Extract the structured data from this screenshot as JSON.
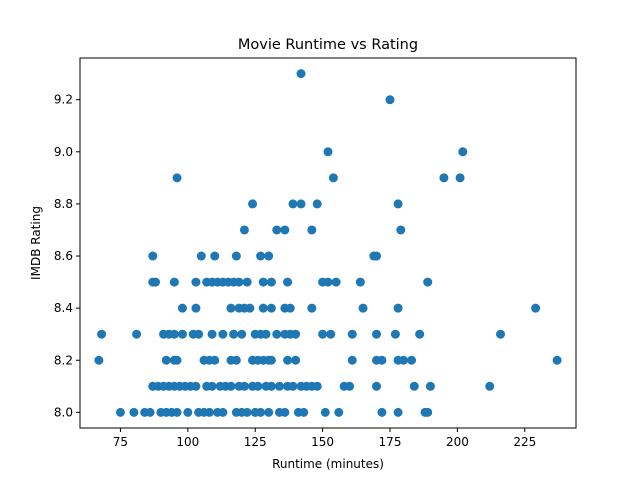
{
  "chart_data": {
    "type": "scatter",
    "title": "Movie Runtime vs Rating",
    "xlabel": "Runtime (minutes)",
    "ylabel": "IMDB Rating",
    "xlim": [
      60,
      244
    ],
    "ylim": [
      7.94,
      9.36
    ],
    "xticks": [
      75,
      100,
      125,
      150,
      175,
      200,
      225
    ],
    "yticks": [
      8.0,
      8.2,
      8.4,
      8.6,
      8.8,
      9.0,
      9.2
    ],
    "yticks_labels": [
      "8.0",
      "8.2",
      "8.4",
      "8.6",
      "8.8",
      "9.0",
      "9.2"
    ],
    "grid": false,
    "marker_color": "#1f77b4",
    "points": [
      [
        142,
        9.3
      ],
      [
        175,
        9.2
      ],
      [
        152,
        9.0
      ],
      [
        202,
        9.0
      ],
      [
        96,
        8.9
      ],
      [
        154,
        8.9
      ],
      [
        195,
        8.9
      ],
      [
        201,
        8.9
      ],
      [
        124,
        8.8
      ],
      [
        139,
        8.8
      ],
      [
        142,
        8.8
      ],
      [
        148,
        8.8
      ],
      [
        178,
        8.8
      ],
      [
        121,
        8.7
      ],
      [
        133,
        8.7
      ],
      [
        136,
        8.7
      ],
      [
        146,
        8.7
      ],
      [
        179,
        8.7
      ],
      [
        87,
        8.6
      ],
      [
        105,
        8.6
      ],
      [
        110,
        8.6
      ],
      [
        118,
        8.6
      ],
      [
        127,
        8.6
      ],
      [
        130,
        8.6
      ],
      [
        169,
        8.6
      ],
      [
        170,
        8.6
      ],
      [
        87,
        8.5
      ],
      [
        88,
        8.5
      ],
      [
        95,
        8.5
      ],
      [
        103,
        8.5
      ],
      [
        107,
        8.5
      ],
      [
        109,
        8.5
      ],
      [
        111,
        8.5
      ],
      [
        113,
        8.5
      ],
      [
        115,
        8.5
      ],
      [
        117,
        8.5
      ],
      [
        119,
        8.5
      ],
      [
        122,
        8.5
      ],
      [
        128,
        8.5
      ],
      [
        131,
        8.5
      ],
      [
        137,
        8.5
      ],
      [
        150,
        8.5
      ],
      [
        152,
        8.5
      ],
      [
        155,
        8.5
      ],
      [
        164,
        8.5
      ],
      [
        189,
        8.5
      ],
      [
        98,
        8.4
      ],
      [
        103,
        8.4
      ],
      [
        116,
        8.4
      ],
      [
        119,
        8.4
      ],
      [
        121,
        8.4
      ],
      [
        123,
        8.4
      ],
      [
        128,
        8.4
      ],
      [
        131,
        8.4
      ],
      [
        136,
        8.4
      ],
      [
        138,
        8.4
      ],
      [
        146,
        8.4
      ],
      [
        165,
        8.4
      ],
      [
        178,
        8.4
      ],
      [
        229,
        8.4
      ],
      [
        68,
        8.3
      ],
      [
        81,
        8.3
      ],
      [
        91,
        8.3
      ],
      [
        93,
        8.3
      ],
      [
        95,
        8.3
      ],
      [
        98,
        8.3
      ],
      [
        102,
        8.3
      ],
      [
        104,
        8.3
      ],
      [
        109,
        8.3
      ],
      [
        113,
        8.3
      ],
      [
        117,
        8.3
      ],
      [
        120,
        8.3
      ],
      [
        125,
        8.3
      ],
      [
        127,
        8.3
      ],
      [
        129,
        8.3
      ],
      [
        133,
        8.3
      ],
      [
        136,
        8.3
      ],
      [
        138,
        8.3
      ],
      [
        140,
        8.3
      ],
      [
        150,
        8.3
      ],
      [
        153,
        8.3
      ],
      [
        161,
        8.3
      ],
      [
        170,
        8.3
      ],
      [
        177,
        8.3
      ],
      [
        186,
        8.3
      ],
      [
        216,
        8.3
      ],
      [
        67,
        8.2
      ],
      [
        92,
        8.2
      ],
      [
        95,
        8.2
      ],
      [
        96,
        8.2
      ],
      [
        106,
        8.2
      ],
      [
        108,
        8.2
      ],
      [
        110,
        8.2
      ],
      [
        116,
        8.2
      ],
      [
        118,
        8.2
      ],
      [
        124,
        8.2
      ],
      [
        126,
        8.2
      ],
      [
        128,
        8.2
      ],
      [
        130,
        8.2
      ],
      [
        131,
        8.2
      ],
      [
        137,
        8.2
      ],
      [
        140,
        8.2
      ],
      [
        161,
        8.2
      ],
      [
        170,
        8.2
      ],
      [
        172,
        8.2
      ],
      [
        178,
        8.2
      ],
      [
        180,
        8.2
      ],
      [
        183,
        8.2
      ],
      [
        237,
        8.2
      ],
      [
        87,
        8.1
      ],
      [
        89,
        8.1
      ],
      [
        91,
        8.1
      ],
      [
        93,
        8.1
      ],
      [
        95,
        8.1
      ],
      [
        97,
        8.1
      ],
      [
        99,
        8.1
      ],
      [
        101,
        8.1
      ],
      [
        103,
        8.1
      ],
      [
        107,
        8.1
      ],
      [
        109,
        8.1
      ],
      [
        112,
        8.1
      ],
      [
        114,
        8.1
      ],
      [
        116,
        8.1
      ],
      [
        119,
        8.1
      ],
      [
        121,
        8.1
      ],
      [
        124,
        8.1
      ],
      [
        126,
        8.1
      ],
      [
        129,
        8.1
      ],
      [
        131,
        8.1
      ],
      [
        134,
        8.1
      ],
      [
        137,
        8.1
      ],
      [
        139,
        8.1
      ],
      [
        142,
        8.1
      ],
      [
        144,
        8.1
      ],
      [
        146,
        8.1
      ],
      [
        148,
        8.1
      ],
      [
        158,
        8.1
      ],
      [
        160,
        8.1
      ],
      [
        170,
        8.1
      ],
      [
        184,
        8.1
      ],
      [
        190,
        8.1
      ],
      [
        212,
        8.1
      ],
      [
        75,
        8.0
      ],
      [
        80,
        8.0
      ],
      [
        84,
        8.0
      ],
      [
        86,
        8.0
      ],
      [
        90,
        8.0
      ],
      [
        92,
        8.0
      ],
      [
        94,
        8.0
      ],
      [
        96,
        8.0
      ],
      [
        100,
        8.0
      ],
      [
        104,
        8.0
      ],
      [
        106,
        8.0
      ],
      [
        108,
        8.0
      ],
      [
        111,
        8.0
      ],
      [
        113,
        8.0
      ],
      [
        118,
        8.0
      ],
      [
        120,
        8.0
      ],
      [
        122,
        8.0
      ],
      [
        125,
        8.0
      ],
      [
        127,
        8.0
      ],
      [
        130,
        8.0
      ],
      [
        134,
        8.0
      ],
      [
        136,
        8.0
      ],
      [
        141,
        8.0
      ],
      [
        143,
        8.0
      ],
      [
        151,
        8.0
      ],
      [
        156,
        8.0
      ],
      [
        172,
        8.0
      ],
      [
        178,
        8.0
      ],
      [
        188,
        8.0
      ],
      [
        189,
        8.0
      ]
    ]
  }
}
